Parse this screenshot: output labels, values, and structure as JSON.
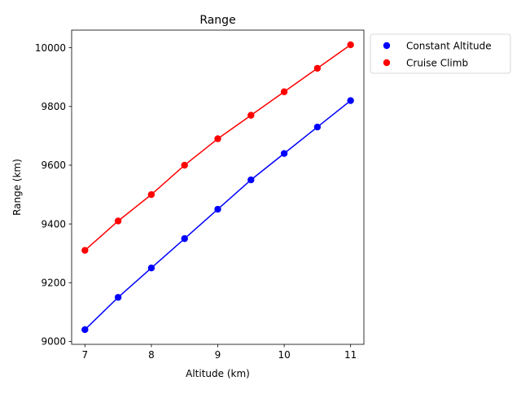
{
  "chart_data": {
    "type": "scatter",
    "title": "Range",
    "xlabel": "Altitude (km)",
    "ylabel": "Range (km)",
    "x": [
      7,
      7.5,
      8,
      8.5,
      9,
      9.5,
      10,
      10.5,
      11
    ],
    "xlim": [
      6.8,
      11.2
    ],
    "ylim": [
      8990,
      10060
    ],
    "xticks": [
      7,
      8,
      9,
      10,
      11
    ],
    "yticks": [
      9000,
      9200,
      9400,
      9600,
      9800,
      10000
    ],
    "grid": false,
    "legend_position": "outside upper right",
    "series": [
      {
        "name": "Constant Altitude",
        "color": "#0000ff",
        "values": [
          9040,
          9150,
          9250,
          9350,
          9450,
          9550,
          9640,
          9730,
          9820
        ]
      },
      {
        "name": "Cruise Climb",
        "color": "#ff0000",
        "values": [
          9310,
          9410,
          9500,
          9600,
          9690,
          9770,
          9850,
          9930,
          10010
        ]
      }
    ]
  }
}
